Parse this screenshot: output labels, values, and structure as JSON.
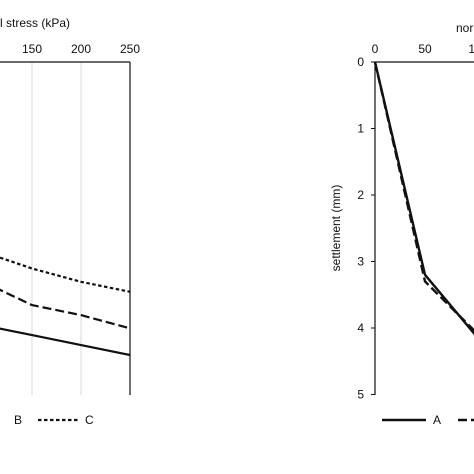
{
  "chart_data": [
    {
      "type": "line",
      "title": "",
      "xlabel": "l stress (kPa)",
      "ylabel": "",
      "x_ticks": [
        "150",
        "200",
        "250"
      ],
      "xlim": [
        100,
        250
      ],
      "grid": {
        "vertical": true,
        "horizontal": false
      },
      "legend_position": "bottom",
      "legend": [
        "B",
        "C"
      ],
      "series": [
        {
          "name": "",
          "style": "solid",
          "x": [
            100,
            150,
            200,
            250
          ],
          "y": [
            0.79,
            0.82,
            0.85,
            0.88
          ]
        },
        {
          "name": "B",
          "style": "dashed",
          "x": [
            100,
            150,
            200,
            250
          ],
          "y": [
            0.66,
            0.73,
            0.76,
            0.8
          ]
        },
        {
          "name": "C",
          "style": "dotted",
          "x": [
            100,
            150,
            200,
            250
          ],
          "y": [
            0.57,
            0.62,
            0.66,
            0.69
          ]
        }
      ]
    },
    {
      "type": "line",
      "title": "",
      "xlabel": "nor",
      "ylabel": "settlement (mm)",
      "x_ticks": [
        "0",
        "50",
        "10"
      ],
      "y_ticks": [
        "0",
        "1",
        "2",
        "3",
        "4",
        "5"
      ],
      "xlim": [
        0,
        100
      ],
      "ylim": [
        0,
        5
      ],
      "y_inverted": true,
      "grid": {
        "vertical": false,
        "horizontal": false
      },
      "legend_position": "bottom",
      "legend": [
        "A"
      ],
      "series": [
        {
          "name": "A",
          "style": "solid",
          "x": [
            0,
            50,
            100
          ],
          "y": [
            0,
            3.2,
            4.1
          ]
        },
        {
          "name": "",
          "style": "dashed",
          "x": [
            0,
            50,
            100
          ],
          "y": [
            0,
            3.3,
            4.05
          ]
        }
      ]
    }
  ]
}
